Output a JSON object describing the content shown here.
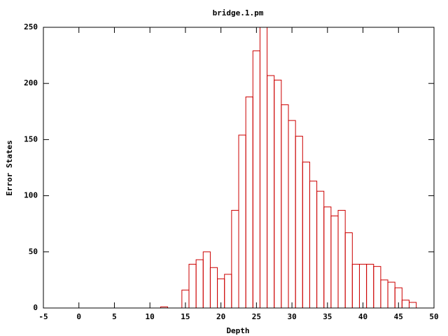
{
  "chart_data": {
    "type": "histogram",
    "title": "bridge.1.pm",
    "xlabel": "Depth",
    "ylabel": "Error States",
    "bins": [
      11.5,
      12.5,
      13.5,
      14.5,
      15.5,
      16.5,
      17.5,
      18.5,
      19.5,
      20.5,
      21.5,
      22.5,
      23.5,
      24.5,
      25.5,
      26.5,
      27.5,
      28.5,
      29.5,
      30.5,
      31.5,
      32.5,
      33.5,
      34.5,
      35.5,
      36.5,
      37.5,
      38.5,
      39.5,
      40.5,
      41.5,
      42.5,
      43.5,
      44.5,
      45.5,
      46.5,
      47.5
    ],
    "values": [
      1,
      0,
      0,
      16,
      39,
      43,
      50,
      36,
      26,
      30,
      87,
      154,
      188,
      229,
      250,
      207,
      203,
      181,
      167,
      153,
      130,
      113,
      104,
      90,
      82,
      87,
      67,
      39,
      39,
      39,
      37,
      25,
      23,
      18,
      7,
      5
    ],
    "color": "#cc0000",
    "xlim": [
      -5,
      50
    ],
    "xticks": [
      -5,
      0,
      5,
      10,
      15,
      20,
      25,
      30,
      35,
      40,
      45,
      50
    ],
    "ylim": [
      0,
      250
    ],
    "yticks": [
      0,
      50,
      100,
      150,
      200,
      250
    ]
  }
}
